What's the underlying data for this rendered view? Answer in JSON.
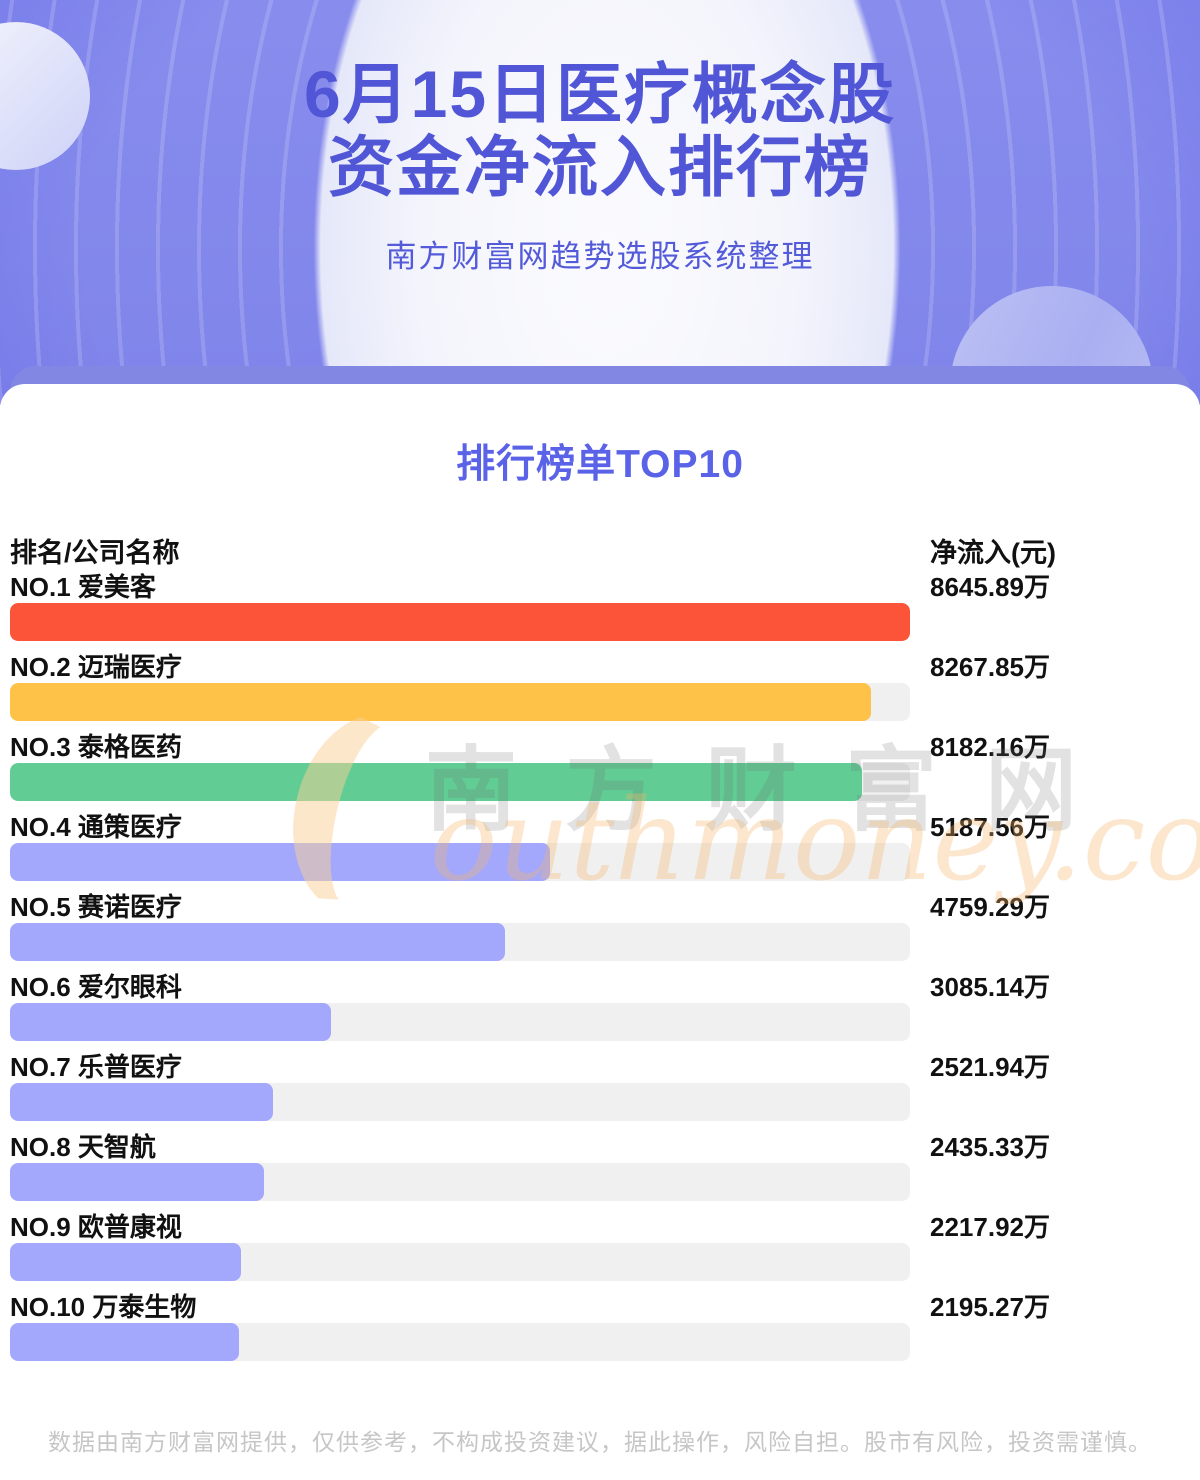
{
  "hero": {
    "title_line1": "6月15日医疗概念股",
    "title_line2": "资金净流入排行榜",
    "subtitle": "南方财富网趋势选股系统整理"
  },
  "section": {
    "title": "排行榜单TOP10"
  },
  "chart_data": {
    "type": "bar",
    "orientation": "horizontal",
    "title": "排行榜单TOP10",
    "header_left": "排名/公司名称",
    "header_right": "净流入(元)",
    "unit": "万",
    "value_axis_max": 8645.89,
    "grid": false,
    "rows": [
      {
        "rank": "NO.1",
        "company": "爱美客",
        "value": 8645.89,
        "value_label": "8645.89万",
        "color": "#fb5438"
      },
      {
        "rank": "NO.2",
        "company": "迈瑞医疗",
        "value": 8267.85,
        "value_label": "8267.85万",
        "color": "#fdc247"
      },
      {
        "rank": "NO.3",
        "company": "泰格医药",
        "value": 8182.16,
        "value_label": "8182.16万",
        "color": "#61cc93"
      },
      {
        "rank": "NO.4",
        "company": "通策医疗",
        "value": 5187.56,
        "value_label": "5187.56万",
        "color": "#a3a8fc"
      },
      {
        "rank": "NO.5",
        "company": "赛诺医疗",
        "value": 4759.29,
        "value_label": "4759.29万",
        "color": "#a3a8fc"
      },
      {
        "rank": "NO.6",
        "company": "爱尔眼科",
        "value": 3085.14,
        "value_label": "3085.14万",
        "color": "#a3a8fc"
      },
      {
        "rank": "NO.7",
        "company": "乐普医疗",
        "value": 2521.94,
        "value_label": "2521.94万",
        "color": "#a3a8fc"
      },
      {
        "rank": "NO.8",
        "company": "天智航",
        "value": 2435.33,
        "value_label": "2435.33万",
        "color": "#a3a8fc"
      },
      {
        "rank": "NO.9",
        "company": "欧普康视",
        "value": 2217.92,
        "value_label": "2217.92万",
        "color": "#a3a8fc"
      },
      {
        "rank": "NO.10",
        "company": "万泰生物",
        "value": 2195.27,
        "value_label": "2195.27万",
        "color": "#a3a8fc"
      }
    ]
  },
  "watermark": {
    "text_cn": "南方财富网",
    "text_en": "outhmoney.com"
  },
  "footer": {
    "disclaimer": "数据由南方财富网提供，仅供参考，不构成投资建议，据此操作，风险自担。股市有风险，投资需谨慎。"
  },
  "colors": {
    "hero_title": "#5056d6",
    "section_title": "#5a62e8",
    "bar_default": "#a3a8fc",
    "bar_track": "#f0f0f0",
    "hero_band": "#8187e2"
  }
}
